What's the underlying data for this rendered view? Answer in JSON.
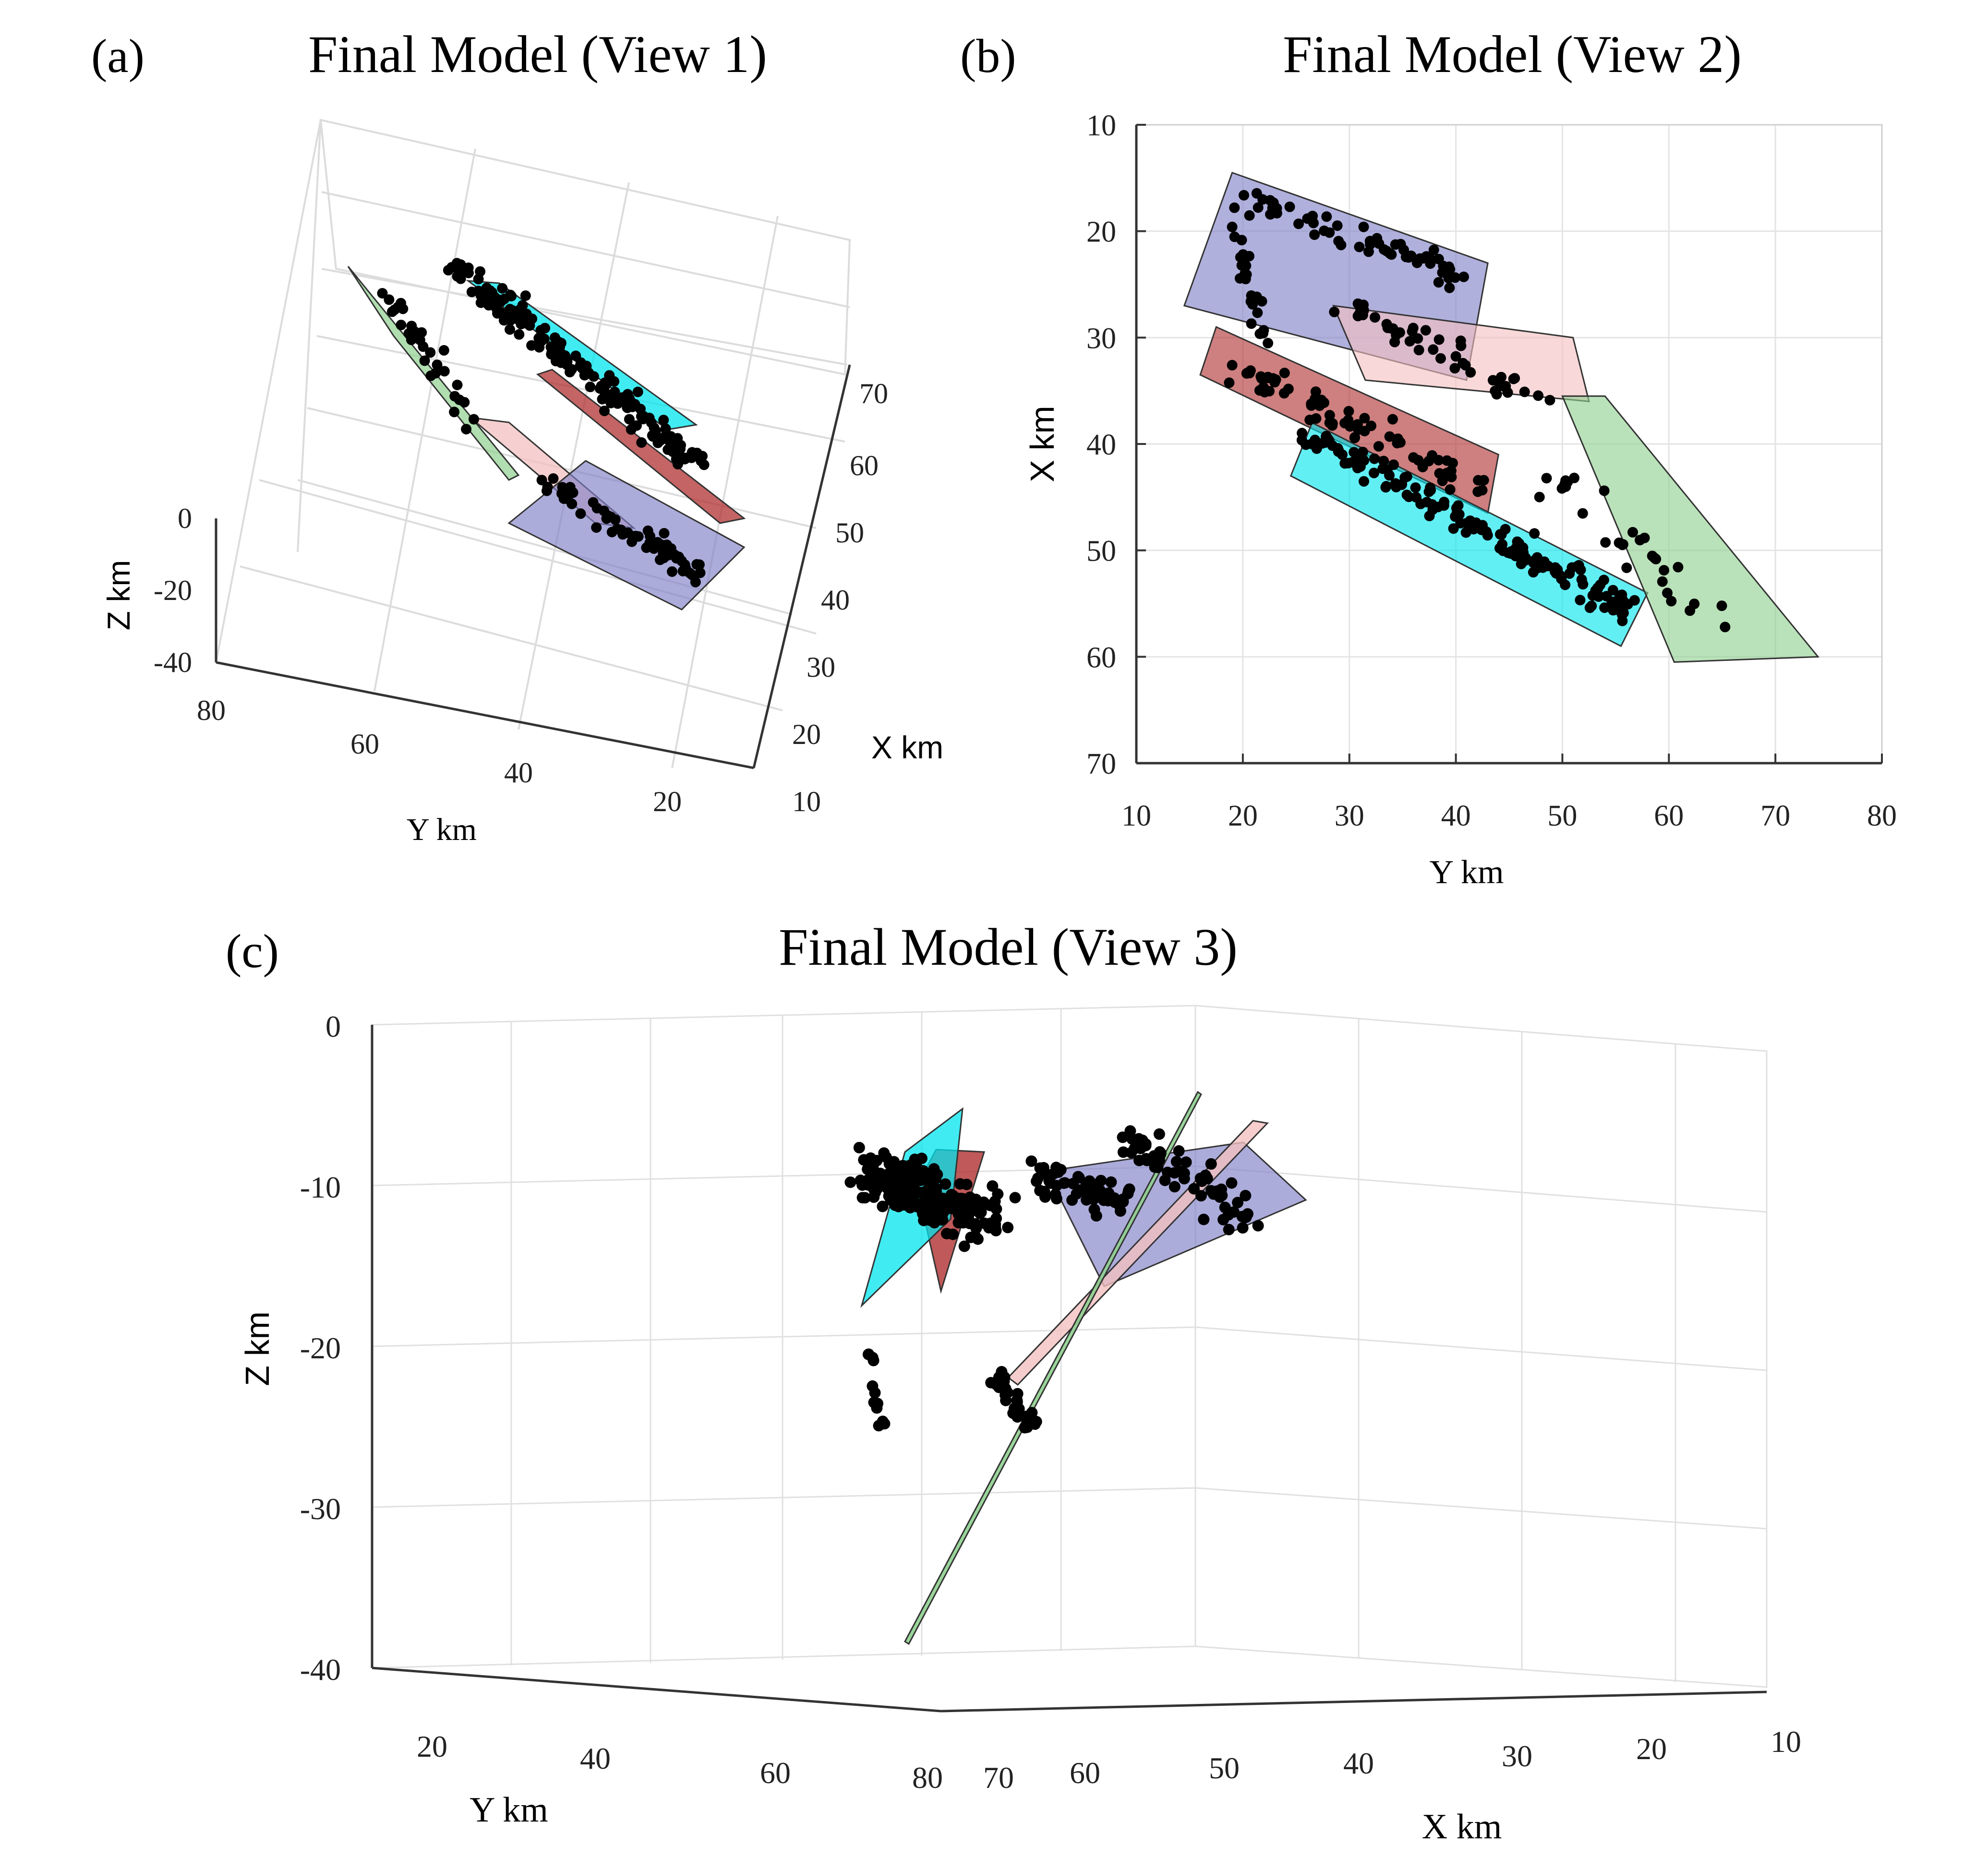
{
  "chart_data": [
    {
      "panel": "(a)",
      "type": "scatter",
      "subtype": "3d",
      "title": "Final Model (View 1)",
      "xlabel": "X km",
      "ylabel": "Y km",
      "zlabel": "Z km",
      "x_ticks": [
        "10",
        "20",
        "30",
        "40",
        "50",
        "60",
        "70"
      ],
      "y_ticks": [
        "20",
        "40",
        "60",
        "80"
      ],
      "z_ticks": [
        "0",
        "-20",
        "-40"
      ],
      "xlim": [
        10,
        70
      ],
      "ylim": [
        10,
        80
      ],
      "zlim": [
        -40,
        0
      ],
      "grid": true,
      "fault_colors": [
        "#8080c8",
        "#f3c0c0",
        "#b03030",
        "#00e5ee",
        "#8fd08f"
      ]
    },
    {
      "panel": "(b)",
      "type": "scatter",
      "subtype": "map-view",
      "title": "Final Model (View 2)",
      "xlabel": "Y km",
      "ylabel": "X km",
      "x_ticks": [
        "10",
        "20",
        "30",
        "40",
        "50",
        "60",
        "70",
        "80"
      ],
      "y_ticks": [
        "10",
        "20",
        "30",
        "40",
        "50",
        "60",
        "70"
      ],
      "xlim": [
        10,
        80
      ],
      "ylim": [
        70,
        10
      ],
      "grid": true,
      "faults": [
        {
          "color": "#8080c8",
          "corners_yx": [
            [
              19,
              14.5
            ],
            [
              43,
              23
            ],
            [
              41,
              34
            ],
            [
              14.5,
              27
            ]
          ]
        },
        {
          "color": "#f3c0c0",
          "corners_yx": [
            [
              28.5,
              27
            ],
            [
              51,
              30
            ],
            [
              52.5,
              36
            ],
            [
              31.5,
              34
            ]
          ]
        },
        {
          "color": "#b03030",
          "corners_yx": [
            [
              17.5,
              29
            ],
            [
              44,
              41
            ],
            [
              43,
              46.5
            ],
            [
              16,
              33.5
            ]
          ]
        },
        {
          "color": "#00e5ee",
          "corners_yx": [
            [
              26.5,
              38
            ],
            [
              58,
              54
            ],
            [
              55.5,
              59
            ],
            [
              24.5,
              43
            ]
          ]
        },
        {
          "color": "#8fd08f",
          "corners_yx": [
            [
              50,
              35.5
            ],
            [
              54,
              35.5
            ],
            [
              74,
              60
            ],
            [
              60.5,
              60.5
            ]
          ]
        }
      ]
    },
    {
      "panel": "(c)",
      "type": "scatter",
      "subtype": "3d",
      "title": "Final Model (View 3)",
      "xlabel": "X km",
      "ylabel": "Y km",
      "zlabel": "Z km",
      "x_ticks": [
        "70",
        "60",
        "50",
        "40",
        "30",
        "20",
        "10"
      ],
      "y_ticks": [
        "20",
        "40",
        "60",
        "80"
      ],
      "z_ticks": [
        "0",
        "-10",
        "-20",
        "-30",
        "-40"
      ],
      "xlim": [
        10,
        70
      ],
      "ylim": [
        10,
        80
      ],
      "zlim": [
        -40,
        0
      ],
      "grid": true,
      "fault_colors": [
        "#8080c8",
        "#f3c0c0",
        "#b03030",
        "#00e5ee",
        "#8fd08f"
      ]
    }
  ]
}
